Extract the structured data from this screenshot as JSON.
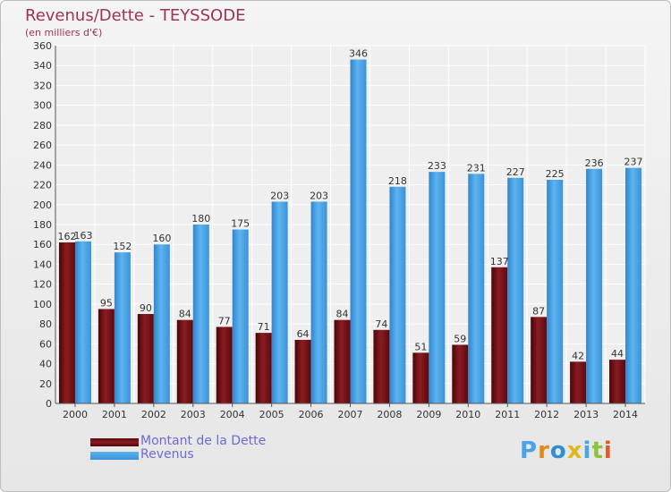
{
  "header": {
    "title": "Revenus/Dette - TEYSSODE",
    "subtitle": "(en milliers d'€)"
  },
  "colors": {
    "dette": "#7a1418",
    "revenus": "#4aa3e6",
    "title": "#a0325a",
    "legend_text": "#6b6bd6"
  },
  "chart_data": {
    "type": "bar",
    "title": "Revenus/Dette - TEYSSODE",
    "subtitle": "(en milliers d'€)",
    "xlabel": "",
    "ylabel": "",
    "categories": [
      "2000",
      "2001",
      "2002",
      "2003",
      "2004",
      "2005",
      "2006",
      "2007",
      "2008",
      "2009",
      "2010",
      "2011",
      "2012",
      "2013",
      "2014"
    ],
    "series": [
      {
        "name": "Montant de la Dette",
        "values": [
          162,
          95,
          90,
          84,
          77,
          71,
          64,
          84,
          74,
          51,
          59,
          137,
          87,
          42,
          44
        ]
      },
      {
        "name": "Revenus",
        "values": [
          163,
          152,
          160,
          180,
          175,
          203,
          203,
          346,
          218,
          233,
          231,
          227,
          225,
          236,
          237
        ]
      }
    ],
    "ylim": [
      0,
      360
    ],
    "yticks": [
      0,
      20,
      40,
      60,
      80,
      100,
      120,
      140,
      160,
      180,
      200,
      220,
      240,
      260,
      280,
      300,
      320,
      340,
      360
    ],
    "grid": true,
    "legend_position": "bottom-left"
  },
  "legend": {
    "items": [
      {
        "label": "Montant de la Dette"
      },
      {
        "label": "Revenus"
      }
    ]
  },
  "logo": {
    "letters": [
      "P",
      "r",
      "o",
      "x",
      "i",
      "t",
      "i"
    ],
    "letter_colors": [
      "#4aa3e6",
      "#e08a1e",
      "#2f8fd6",
      "#e0b81e",
      "#4aa3e6",
      "#8fc23b",
      "#e05a2b"
    ]
  }
}
